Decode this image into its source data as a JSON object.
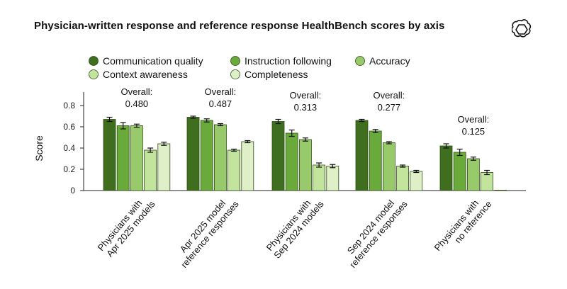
{
  "title": "Physician-written response and reference response HealthBench scores by axis",
  "logo_icon": "openai-logo-icon",
  "chart_data": {
    "type": "bar",
    "ylabel": "Score",
    "xlabel": "",
    "ylim": [
      0,
      0.9
    ],
    "yticks": [
      "0",
      "0.2",
      "0.4",
      "0.6",
      "0.8"
    ],
    "ytick_values": [
      0,
      0.2,
      0.4,
      0.6,
      0.8
    ],
    "legend_placement": "top",
    "categories": [
      [
        "Physicians with",
        "Apr 2025 models"
      ],
      [
        "Apr 2025 model",
        "reference responses"
      ],
      [
        "Physicians with",
        "Sep 2024 models"
      ],
      [
        "Sep 2024 model",
        "reference responses"
      ],
      [
        "Physicians with",
        "no reference"
      ]
    ],
    "overall": [
      [
        "Overall:",
        "0.480"
      ],
      [
        "Overall:",
        "0.487"
      ],
      [
        "Overall:",
        "0.313"
      ],
      [
        "Overall:",
        "0.277"
      ],
      [
        "Overall:",
        "0.125"
      ]
    ],
    "series": [
      {
        "name": "Communication quality",
        "color": "#3f6e1e",
        "values": [
          0.67,
          0.69,
          0.65,
          0.66,
          0.42
        ],
        "errors": [
          0.02,
          0.01,
          0.02,
          0.01,
          0.02
        ]
      },
      {
        "name": "Instruction following",
        "color": "#6aaa3a",
        "values": [
          0.61,
          0.66,
          0.54,
          0.56,
          0.36
        ],
        "errors": [
          0.03,
          0.015,
          0.03,
          0.015,
          0.03
        ]
      },
      {
        "name": "Accuracy",
        "color": "#98c96a",
        "values": [
          0.61,
          0.62,
          0.48,
          0.45,
          0.3
        ],
        "errors": [
          0.015,
          0.01,
          0.015,
          0.01,
          0.015
        ]
      },
      {
        "name": "Context awareness",
        "color": "#c2e49c",
        "values": [
          0.38,
          0.38,
          0.24,
          0.23,
          0.17
        ],
        "errors": [
          0.02,
          0.01,
          0.02,
          0.01,
          0.02
        ]
      },
      {
        "name": "Completeness",
        "color": "#dff0c8",
        "values": [
          0.44,
          0.46,
          0.23,
          0.18,
          0.0
        ],
        "errors": [
          0.015,
          0.01,
          0.015,
          0.01,
          0.0
        ]
      }
    ]
  }
}
